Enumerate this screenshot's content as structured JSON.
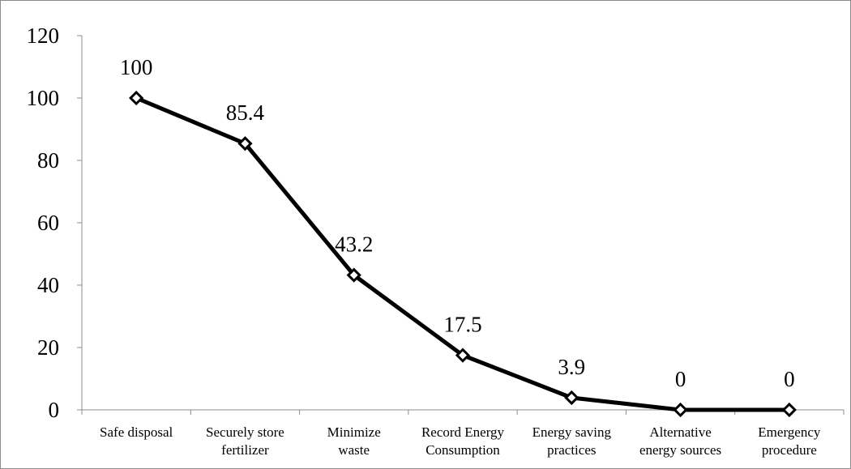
{
  "chart_data": {
    "type": "line",
    "categories": [
      [
        "Safe disposal"
      ],
      [
        "Securely store",
        "fertilizer"
      ],
      [
        "Minimize",
        "waste"
      ],
      [
        "Record Energy",
        "Consumption"
      ],
      [
        "Energy saving",
        "practices"
      ],
      [
        "Alternative",
        "energy sources"
      ],
      [
        "Emergency",
        "procedure"
      ]
    ],
    "values": [
      100,
      85.4,
      43.2,
      17.5,
      3.9,
      0,
      0
    ],
    "data_labels": [
      "100",
      "85.4",
      "43.2",
      "17.5",
      "3.9",
      "0",
      "0"
    ],
    "y_ticks": [
      "0",
      "20",
      "40",
      "60",
      "80",
      "100",
      "120"
    ],
    "ylim": [
      0,
      120
    ],
    "title": "",
    "xlabel": "",
    "ylabel": "",
    "grid": false,
    "legend": "none",
    "marker": "diamond-open",
    "line_color": "#000000"
  }
}
